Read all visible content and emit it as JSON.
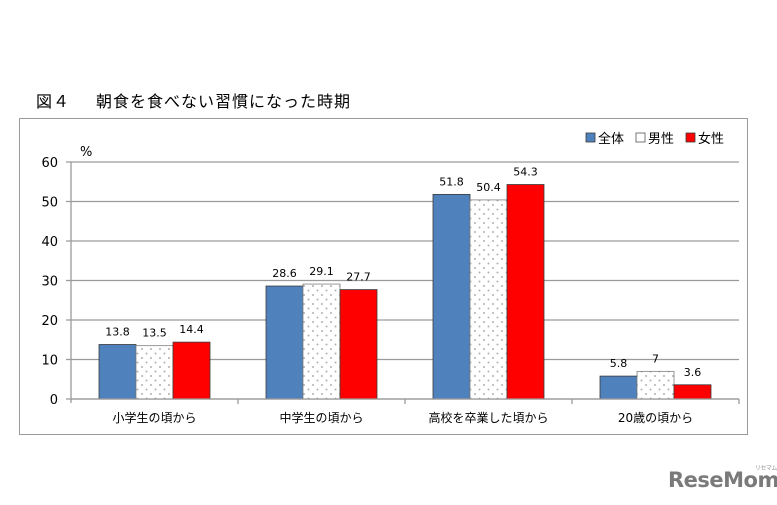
{
  "figure": {
    "number": "図４",
    "title": "朝食を食べない習慣になった時期"
  },
  "watermark": {
    "text": "ReseMom",
    "subtext": "リセマム"
  },
  "chart_data": {
    "type": "bar",
    "title": "朝食を食べない習慣になった時期",
    "xlabel": "",
    "ylabel": "%",
    "ylim": [
      0,
      60
    ],
    "yticks": [
      0,
      10,
      20,
      30,
      40,
      50,
      60
    ],
    "grid": true,
    "legend_position": "top-right",
    "categories": [
      "小学生の頃から",
      "中学生の頃から",
      "高校を卒業した頃から",
      "20歳の頃から"
    ],
    "series": [
      {
        "name": "全体",
        "color": "#4f81bd",
        "pattern": "solid",
        "values": [
          13.8,
          28.6,
          51.8,
          5.8
        ],
        "labels": [
          "13.8",
          "28.6",
          "51.8",
          "5.8"
        ]
      },
      {
        "name": "男性",
        "color": "#ffffff",
        "pattern": "dots",
        "values": [
          13.5,
          29.1,
          50.4,
          7
        ],
        "labels": [
          "13.5",
          "29.1",
          "50.4",
          "7"
        ]
      },
      {
        "name": "女性",
        "color": "#ff0000",
        "pattern": "solid",
        "values": [
          14.4,
          27.7,
          54.3,
          3.6
        ],
        "labels": [
          "14.4",
          "27.7",
          "54.3",
          "3.6"
        ]
      }
    ]
  }
}
